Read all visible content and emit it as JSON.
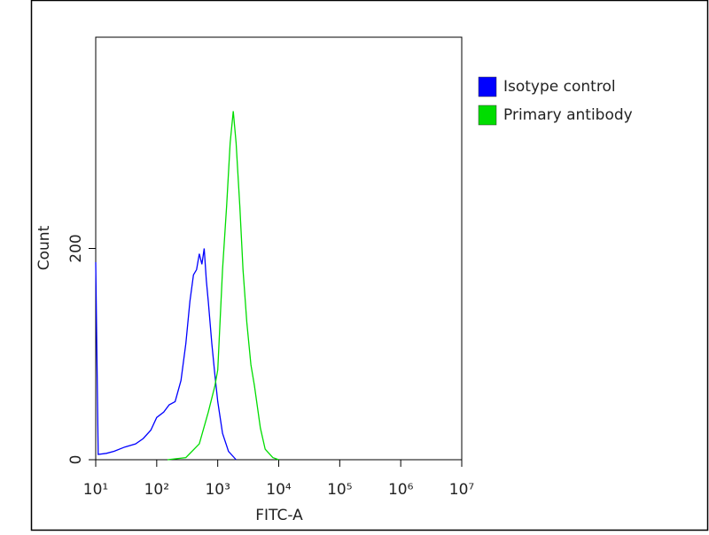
{
  "chart_data": {
    "type": "line",
    "xlabel": "FITC-A",
    "ylabel": "Count",
    "xscale": "log",
    "xlim": [
      10,
      10000000
    ],
    "xticks": [
      {
        "value": 10,
        "label": "10¹"
      },
      {
        "value": 100,
        "label": "10²"
      },
      {
        "value": 1000,
        "label": "10³"
      },
      {
        "value": 10000,
        "label": "10⁴"
      },
      {
        "value": 100000,
        "label": "10⁵"
      },
      {
        "value": 1000000,
        "label": "10⁶"
      },
      {
        "value": 10000000,
        "label": "10⁷"
      }
    ],
    "ylim": [
      0,
      400
    ],
    "yticks": [
      0,
      200
    ],
    "legend": "upper right outside",
    "series": [
      {
        "name": "Isotype control",
        "color": "#0000ff",
        "x": [
          10,
          11,
          15,
          20,
          30,
          45,
          60,
          80,
          100,
          130,
          160,
          200,
          250,
          300,
          350,
          400,
          450,
          500,
          550,
          600,
          650,
          700,
          800,
          900,
          1000,
          1200,
          1500,
          2000
        ],
        "values": [
          187,
          5,
          6,
          8,
          12,
          15,
          20,
          28,
          40,
          45,
          52,
          55,
          75,
          110,
          150,
          175,
          180,
          195,
          185,
          200,
          170,
          150,
          110,
          80,
          55,
          25,
          8,
          0
        ]
      },
      {
        "name": "Primary antibody",
        "color": "#00dd00",
        "x": [
          150,
          300,
          500,
          700,
          900,
          1000,
          1200,
          1400,
          1600,
          1800,
          2000,
          2300,
          2600,
          3000,
          3500,
          4000,
          5000,
          6000,
          8000,
          10000
        ],
        "values": [
          0,
          2,
          15,
          45,
          70,
          85,
          180,
          240,
          300,
          330,
          300,
          240,
          180,
          130,
          90,
          70,
          30,
          10,
          2,
          0
        ]
      }
    ]
  }
}
